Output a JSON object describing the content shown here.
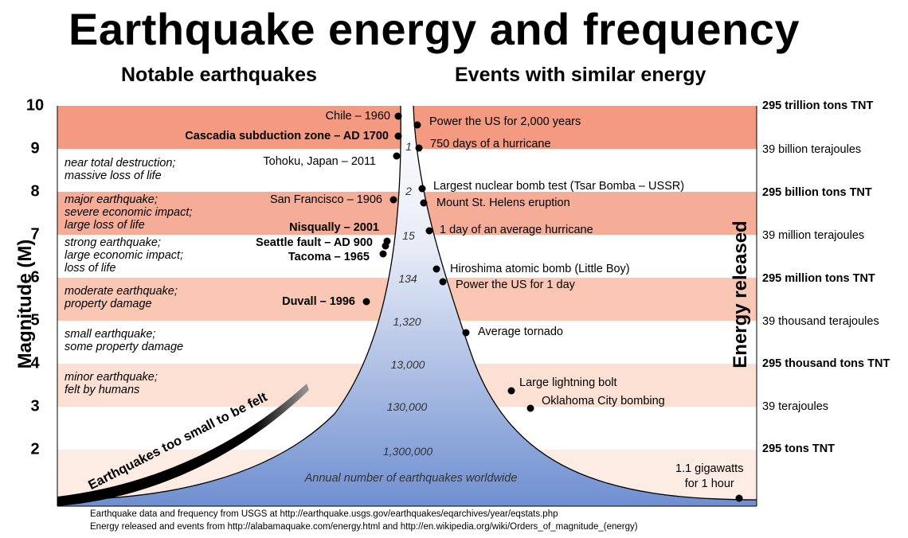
{
  "title": "Earthquake energy and frequency",
  "subtitles": {
    "left": "Notable earthquakes",
    "right": "Events with similar energy"
  },
  "axes": {
    "left_label": "Magnitude (M)",
    "right_label": "Energy released",
    "magnitude_ticks": [
      "10",
      "9",
      "8",
      "7",
      "6",
      "5",
      "4",
      "3",
      "2"
    ]
  },
  "descriptions": [
    "near total destruction;\nmassive loss of life",
    "major earthquake;\nsevere economic impact;\nlarge loss of life",
    "strong earthquake;\nlarge economic impact;\nloss of life",
    "moderate earthquake;\nproperty damage",
    "small earthquake;\nsome property damage",
    "minor earthquake;\nfelt by humans"
  ],
  "notable_earthquakes": [
    {
      "label": "Chile – 1960",
      "bold": false
    },
    {
      "label": "Cascadia subduction zone – AD 1700",
      "bold": true
    },
    {
      "label": "Tohoku, Japan – 2011",
      "bold": false
    },
    {
      "label": "San Francisco – 1906",
      "bold": false
    },
    {
      "label": "Nisqually – 2001",
      "bold": true
    },
    {
      "label": "Seattle fault – AD 900",
      "bold": true
    },
    {
      "label": "Tacoma – 1965",
      "bold": true
    },
    {
      "label": "Duvall – 1996",
      "bold": true
    }
  ],
  "similar_events": [
    "Power the US for 2,000 years",
    "750 days of a hurricane",
    "Largest nuclear bomb test (Tsar Bomba – USSR)",
    "Mount St. Helens eruption",
    "1 day of an average hurricane",
    "Hiroshima atomic bomb (Little Boy)",
    "Power the US for 1 day",
    "Average tornado",
    "Large lightning bolt",
    "Oklahoma City bombing",
    "1.1 gigawatts\nfor 1 hour"
  ],
  "annual_frequency": [
    "1",
    "2",
    "15",
    "134",
    "1,320",
    "13,000",
    "130,000",
    "1,300,000"
  ],
  "annual_caption": "Annual number of earthquakes worldwide",
  "too_small_label": "Earthquakes too small to be felt",
  "energy_labels": [
    {
      "text": "295 trillion tons TNT",
      "bold": true
    },
    {
      "text": "39 billion terajoules",
      "bold": false
    },
    {
      "text": "295 billion tons TNT",
      "bold": true
    },
    {
      "text": "39 million terajoules",
      "bold": false
    },
    {
      "text": "295 million tons TNT",
      "bold": true
    },
    {
      "text": "39 thousand terajoules",
      "bold": false
    },
    {
      "text": "295 thousand tons TNT",
      "bold": true
    },
    {
      "text": "39 terajoules",
      "bold": false
    },
    {
      "text": "295 tons TNT",
      "bold": true
    }
  ],
  "sources": [
    "Earthquake data and frequency from USGS at http://earthquake.usgs.gov/earthquakes/eqarchives/year/eqstats.php",
    "Energy released and events from http://alabamaquake.com/energy.html and http://en.wikipedia.org/wiki/Orders_of_magnitude_(energy)"
  ],
  "colors": {
    "band_major": "#f39a80",
    "band_strong": "#f6ad98",
    "band_moderate": "#fac7b5",
    "band_minor": "#fce0d4",
    "band_light": "#fdece4",
    "funnel_top": "#ffffff",
    "funnel_bottom": "#6f8fd0",
    "line": "#000000"
  }
}
